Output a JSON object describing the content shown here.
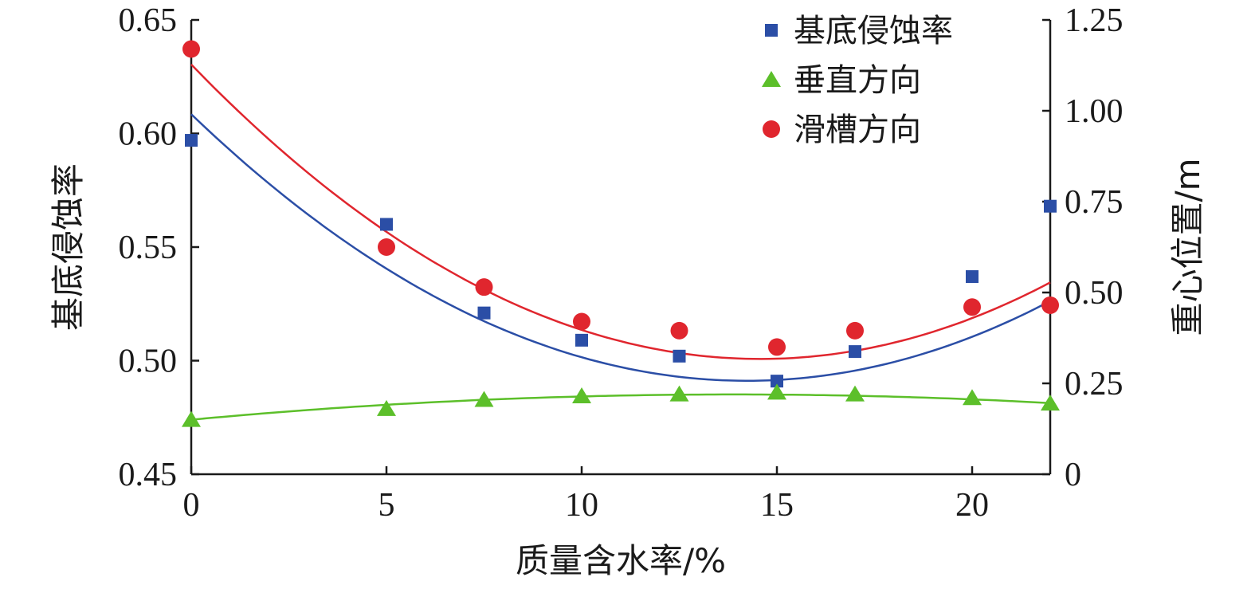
{
  "chart_data": {
    "type": "scatter",
    "xlabel": "质量含水率/%",
    "ylabel_left": "基底侵蚀率",
    "ylabel_right": "重心位置/m",
    "x_ticks": [
      "0",
      "5",
      "10",
      "15",
      "20"
    ],
    "y_left_ticks": [
      "0.45",
      "0.50",
      "0.55",
      "0.60",
      "0.65"
    ],
    "y_right_ticks": [
      "0",
      "0.25",
      "0.50",
      "0.75",
      "1.00",
      "1.25"
    ],
    "xlim": [
      0,
      22
    ],
    "ylim_left": [
      0.45,
      0.65
    ],
    "ylim_right": [
      0,
      1.25
    ],
    "legend_position": "top-right",
    "series": [
      {
        "name": "基底侵蚀率",
        "axis": "left",
        "marker": "square",
        "color": "#2b4ea6",
        "x": [
          0,
          5,
          7.5,
          10,
          12.5,
          15,
          17,
          20,
          22
        ],
        "y": [
          0.597,
          0.56,
          0.521,
          0.509,
          0.502,
          0.491,
          0.504,
          0.537,
          0.568
        ],
        "fit": [
          0.6085,
          -0.0165,
          0.00058
        ]
      },
      {
        "name": "垂直方向",
        "axis": "right",
        "marker": "triangle",
        "color": "#5cbf2a",
        "x": [
          0,
          5,
          7.5,
          10,
          12.5,
          15,
          17,
          20,
          22
        ],
        "y": [
          0.15,
          0.18,
          0.205,
          0.215,
          0.22,
          0.225,
          0.22,
          0.21,
          0.195
        ],
        "fit": [
          0.15,
          0.01,
          -0.00036
        ]
      },
      {
        "name": "滑槽方向",
        "axis": "right",
        "marker": "circle",
        "color": "#e0262e",
        "x": [
          0,
          5,
          7.5,
          10,
          12.5,
          15,
          17,
          20,
          22
        ],
        "y": [
          1.17,
          0.625,
          0.515,
          0.42,
          0.395,
          0.35,
          0.395,
          0.46,
          0.465
        ],
        "fit": [
          1.1275,
          -0.1112,
          0.003815
        ]
      }
    ]
  }
}
